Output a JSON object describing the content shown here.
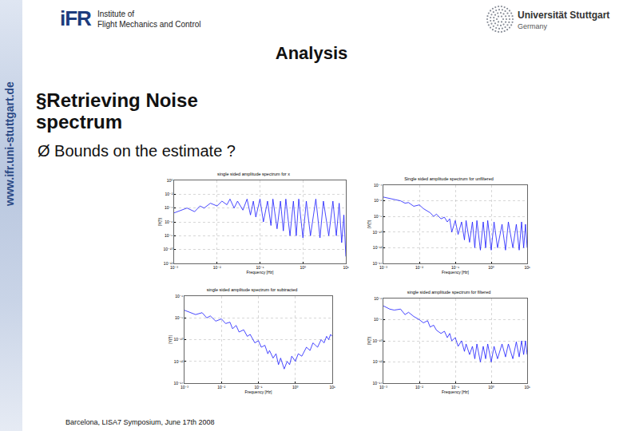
{
  "slide": {
    "header": {
      "logo": "iFR",
      "institute": [
        "Institute of",
        "Flight Mechanics and Control"
      ],
      "university": "Universität Stuttgart",
      "country": "Germany"
    },
    "sidebar": "www.ifr.uni-stuttgart.de",
    "title": "Analysis",
    "bullets": [
      "§Retrieving Noise spectrum"
    ],
    "subbullets": [
      "Ø Bounds on the estimate ?"
    ],
    "footer": "Barcelona, LISA7 Symposium, June 17th 2008"
  },
  "chart_data": [
    {
      "type": "line",
      "title": "single sided amplitude spectrum for x",
      "x_label": "Frequency [Hz]",
      "y_label": "|Y(f)|",
      "x": [
        0.001,
        0.0015,
        0.002,
        0.003,
        0.004,
        0.005,
        0.007,
        0.01,
        0.013,
        0.017,
        0.02,
        0.025,
        0.03,
        0.04,
        0.05,
        0.06,
        0.07,
        0.08,
        0.1,
        0.12,
        0.15,
        0.18,
        0.2,
        0.25,
        0.3,
        0.35,
        0.4,
        0.5,
        0.6,
        0.7,
        0.8,
        1,
        1.2,
        1.5,
        2,
        2.5,
        3,
        4,
        5,
        6,
        7,
        8,
        9,
        10
      ],
      "values": [
        2e-05,
        5e-05,
        0.0001,
        3e-05,
        0.0002,
        0.0001,
        0.0005,
        0.0002,
        0.001,
        0.0003,
        0.002,
        0.0001,
        0.001,
        5e-05,
        0.002,
        1e-05,
        0.001,
        5e-06,
        0.002,
        1e-06,
        0.001,
        3e-07,
        0.002,
        1e-07,
        0.001,
        5e-08,
        0.002,
        1e-08,
        0.001,
        1e-08,
        0.002,
        5e-09,
        0.001,
        1e-08,
        0.002,
        5e-09,
        0.001,
        1e-08,
        0.001,
        1e-08,
        0.0005,
        1e-09,
        1e-05,
        1e-11
      ],
      "color": "#1a1aff",
      "log": true,
      "grid": true,
      "xlim": [
        0.001,
        10
      ],
      "xticks": [
        {
          "value": 0.001,
          "label": "10⁻³"
        },
        {
          "value": 0.01,
          "label": "10⁻²"
        },
        {
          "value": 0.1,
          "label": "10⁻¹"
        },
        {
          "value": 1,
          "label": "10⁰"
        },
        {
          "value": 10,
          "label": "10¹"
        }
      ],
      "ylim": [
        1e-12,
        1
      ],
      "yticks": [
        {
          "value": 1e-12,
          "label": "10⁻¹²"
        },
        {
          "value": 1e-10,
          "label": "10⁻¹⁰"
        },
        {
          "value": 1e-08,
          "label": "10⁻⁸"
        },
        {
          "value": 1e-06,
          "label": "10⁻⁶"
        },
        {
          "value": 0.0001,
          "label": "10⁻⁴"
        },
        {
          "value": 0.01,
          "label": "10⁻²"
        },
        {
          "value": 1,
          "label": "10⁰"
        }
      ]
    },
    {
      "type": "line",
      "title": "Single sided amplitude spectrum for unfiltered",
      "x_label": "Frequency [Hz]",
      "y_label": "|Y(f)|",
      "x": [
        0.001,
        0.0015,
        0.002,
        0.003,
        0.004,
        0.005,
        0.007,
        0.01,
        0.013,
        0.017,
        0.02,
        0.025,
        0.03,
        0.04,
        0.05,
        0.06,
        0.07,
        0.08,
        0.1,
        0.12,
        0.15,
        0.18,
        0.2,
        0.25,
        0.3,
        0.35,
        0.4,
        0.5,
        0.6,
        0.7,
        0.8,
        1,
        1.2,
        1.5,
        2,
        2.5,
        3,
        4,
        5,
        6,
        7,
        8,
        9,
        10
      ],
      "values": [
        3e-06,
        2e-06,
        1.5e-06,
        1e-06,
        5e-07,
        6e-07,
        2e-07,
        3e-07,
        1e-07,
        5e-08,
        3e-08,
        1e-08,
        2e-08,
        5e-09,
        8e-09,
        2e-09,
        5e-09,
        1e-10,
        3e-09,
        5e-11,
        2e-09,
        1e-11,
        3e-09,
        5e-12,
        2e-09,
        1e-12,
        3e-09,
        5e-13,
        2e-09,
        1e-12,
        3e-09,
        5e-13,
        2e-09,
        1e-12,
        1e-09,
        5e-13,
        2e-09,
        1e-12,
        1e-09,
        5e-13,
        2e-09,
        1e-12,
        1e-09,
        1e-12
      ],
      "color": "#1a1aff",
      "log": true,
      "grid": true,
      "xlim": [
        0.001,
        10
      ],
      "xticks": [
        {
          "value": 0.001,
          "label": "10⁻³"
        },
        {
          "value": 0.01,
          "label": "10⁻²"
        },
        {
          "value": 0.1,
          "label": "10⁻¹"
        },
        {
          "value": 1,
          "label": "10⁰"
        },
        {
          "value": 10,
          "label": "10¹"
        }
      ],
      "ylim": [
        1e-14,
        0.0001
      ],
      "yticks": [
        {
          "value": 1e-14,
          "label": "10⁻¹⁴"
        },
        {
          "value": 1e-12,
          "label": "10⁻¹²"
        },
        {
          "value": 1e-10,
          "label": "10⁻¹⁰"
        },
        {
          "value": 1e-08,
          "label": "10⁻⁸"
        },
        {
          "value": 1e-06,
          "label": "10⁻⁶"
        },
        {
          "value": 0.0001,
          "label": "10⁻⁴"
        }
      ]
    },
    {
      "type": "line",
      "title": "single sided amplitude spectrum for subtracted",
      "x_label": "Frequency [Hz]",
      "y_label": "|Y(f)|",
      "x": [
        0.001,
        0.0015,
        0.002,
        0.003,
        0.004,
        0.005,
        0.007,
        0.01,
        0.013,
        0.017,
        0.02,
        0.025,
        0.03,
        0.04,
        0.05,
        0.06,
        0.07,
        0.08,
        0.1,
        0.12,
        0.15,
        0.18,
        0.2,
        0.25,
        0.3,
        0.35,
        0.4,
        0.5,
        0.6,
        0.7,
        0.8,
        1,
        1.2,
        1.5,
        2,
        2.5,
        3,
        4,
        5,
        6,
        7,
        8,
        9,
        10
      ],
      "values": [
        5e-08,
        3e-08,
        2e-08,
        3e-08,
        1e-08,
        1.5e-08,
        5e-09,
        8e-09,
        3e-09,
        4e-09,
        1e-09,
        2e-09,
        5e-10,
        8e-10,
        2e-10,
        3e-10,
        1e-10,
        5e-11,
        8e-11,
        2e-11,
        3e-11,
        5e-12,
        1e-11,
        2e-12,
        5e-12,
        5e-13,
        2e-12,
        2e-13,
        1e-12,
        5e-13,
        3e-12,
        1e-12,
        5e-12,
        3e-12,
        2e-11,
        1e-11,
        5e-11,
        2e-11,
        1e-10,
        5e-11,
        2e-10,
        1e-10,
        3e-10,
        2e-10
      ],
      "color": "#1a1aff",
      "log": true,
      "grid": true,
      "xlim": [
        0.001,
        10
      ],
      "xticks": [
        {
          "value": 0.001,
          "label": "10⁻³"
        },
        {
          "value": 0.01,
          "label": "10⁻²"
        },
        {
          "value": 0.1,
          "label": "10⁻¹"
        },
        {
          "value": 1,
          "label": "10⁰"
        },
        {
          "value": 10,
          "label": "10¹"
        }
      ],
      "ylim": [
        1e-14,
        1e-06
      ],
      "yticks": [
        {
          "value": 1e-14,
          "label": "10⁻¹⁴"
        },
        {
          "value": 1e-12,
          "label": "10⁻¹²"
        },
        {
          "value": 1e-10,
          "label": "10⁻¹⁰"
        },
        {
          "value": 1e-08,
          "label": "10⁻⁸"
        },
        {
          "value": 1e-06,
          "label": "10⁻⁶"
        }
      ]
    },
    {
      "type": "line",
      "title": "single sided amplitude spectrum for filtered",
      "x_label": "Frequency [Hz]",
      "y_label": "|Y(f)|",
      "x": [
        0.001,
        0.0015,
        0.002,
        0.003,
        0.004,
        0.005,
        0.007,
        0.01,
        0.013,
        0.017,
        0.02,
        0.025,
        0.03,
        0.04,
        0.05,
        0.06,
        0.07,
        0.08,
        0.1,
        0.12,
        0.15,
        0.18,
        0.2,
        0.25,
        0.3,
        0.35,
        0.4,
        0.5,
        0.6,
        0.7,
        0.8,
        1,
        1.2,
        1.5,
        2,
        2.5,
        3,
        4,
        5,
        6,
        7,
        8,
        9,
        10
      ],
      "values": [
        2e-07,
        1e-07,
        8e-08,
        1e-07,
        3e-08,
        5e-08,
        2e-08,
        1e-08,
        5e-09,
        8e-09,
        2e-09,
        3e-09,
        1e-09,
        5e-10,
        8e-10,
        2e-10,
        5e-10,
        1e-10,
        2e-10,
        3e-11,
        1e-10,
        1e-11,
        5e-11,
        5e-12,
        3e-11,
        2e-12,
        5e-11,
        1e-12,
        3e-11,
        2e-12,
        5e-11,
        1e-12,
        3e-11,
        2e-12,
        5e-11,
        3e-12,
        5e-11,
        2e-12,
        8e-11,
        3e-12,
        1e-10,
        5e-12,
        1e-10,
        5e-12
      ],
      "color": "#1a1aff",
      "log": true,
      "grid": true,
      "xlim": [
        0.001,
        10
      ],
      "xticks": [
        {
          "value": 0.001,
          "label": "10⁻³"
        },
        {
          "value": 0.01,
          "label": "10⁻²"
        },
        {
          "value": 0.1,
          "label": "10⁻¹"
        },
        {
          "value": 1,
          "label": "10⁰"
        },
        {
          "value": 10,
          "label": "10¹"
        }
      ],
      "ylim": [
        1e-14,
        1e-06
      ],
      "yticks": [
        {
          "value": 1e-14,
          "label": "10⁻¹⁴"
        },
        {
          "value": 1e-12,
          "label": "10⁻¹²"
        },
        {
          "value": 1e-10,
          "label": "10⁻¹⁰"
        },
        {
          "value": 1e-08,
          "label": "10⁻⁸"
        },
        {
          "value": 1e-06,
          "label": "10⁻⁶"
        }
      ]
    }
  ]
}
